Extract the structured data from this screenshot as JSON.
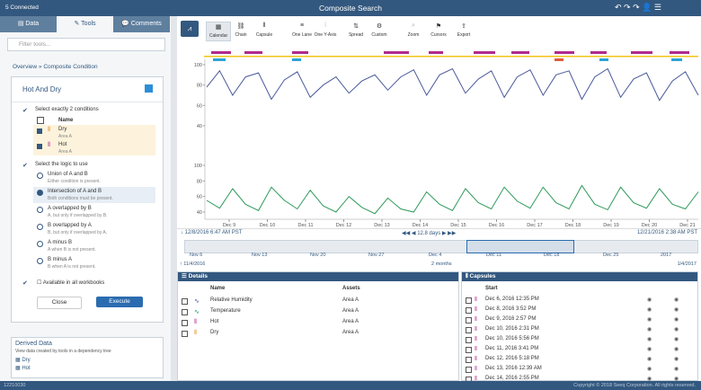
{
  "topbar": {
    "connection": "5 Connected",
    "title": "Composite Search"
  },
  "sidebar": {
    "tabs": [
      "Data",
      "Tools",
      "Comments"
    ],
    "filter_placeholder": "Filter tools...",
    "breadcrumb": [
      "Overview",
      "Composite Condition"
    ],
    "tool_title": "Hot And Dry",
    "step1": "Select exactly 2 conditions",
    "column": "Name",
    "conditions": [
      {
        "name": "Dry",
        "asset": "Area A"
      },
      {
        "name": "Hot",
        "asset": "Area A"
      }
    ],
    "step2": "Select the logic to use",
    "logic": [
      {
        "label": "Union of A and B",
        "desc": "Either condition is present."
      },
      {
        "label": "Intersection of A and B",
        "desc": "Both conditions must be present."
      },
      {
        "label": "A overlapped by B",
        "desc": "A, but only if overlapped by B."
      },
      {
        "label": "B overlapped by A",
        "desc": "B, but only if overlapped by A."
      },
      {
        "label": "A minus B",
        "desc": "A when B is not present."
      },
      {
        "label": "B minus A",
        "desc": "B when A is not present."
      }
    ],
    "available": "Available in all workbooks",
    "close": "Close",
    "execute": "Execute",
    "derived_title": "Derived Data",
    "derived_desc": "View data created by tools in a dependency tree",
    "derived_items": [
      "Dry",
      "Hot"
    ]
  },
  "toolbar": [
    "Calendar",
    "Chain",
    "Capsule",
    "One Lane",
    "One Y-Axis",
    "Spread",
    "Custom",
    "Zoom",
    "Cursors",
    "Export"
  ],
  "trend": {
    "y1ticks": [
      100,
      80,
      60,
      40
    ],
    "y2ticks": [
      100,
      80,
      60,
      40
    ],
    "xlabels": [
      "Dec 9",
      "Dec 10",
      "Dec 11",
      "Dec 12",
      "Dec 13",
      "Dec 14",
      "Dec 15",
      "Dec 16",
      "Dec 17",
      "Dec 18",
      "Dec 19",
      "Dec 20",
      "Dec 21"
    ],
    "series": [
      {
        "name": "Relative Humidity",
        "color": "#4a5a9a",
        "values": [
          78,
          94,
          70,
          88,
          92,
          66,
          85,
          93,
          68,
          80,
          88,
          72,
          84,
          90,
          75,
          88,
          95,
          70,
          90,
          96,
          72,
          86,
          94,
          68,
          88,
          95,
          70,
          90,
          94,
          66,
          88,
          96,
          68,
          86,
          92,
          65,
          84,
          93,
          70
        ]
      },
      {
        "name": "Temperature",
        "color": "#2e9a5a",
        "values": [
          55,
          45,
          70,
          50,
          42,
          72,
          55,
          44,
          68,
          48,
          40,
          60,
          46,
          38,
          58,
          44,
          40,
          66,
          50,
          42,
          70,
          52,
          44,
          72,
          54,
          45,
          72,
          52,
          44,
          74,
          50,
          43,
          72,
          52,
          45,
          70,
          50,
          44,
          66
        ]
      }
    ]
  },
  "timebar": {
    "start": "12/8/2016 6:47 AM PST",
    "duration": "12.8 days",
    "end": "12/21/2016 2:38 AM PST"
  },
  "navigator": {
    "labels": [
      "Nov 6",
      "Nov 13",
      "Nov 20",
      "Nov 27",
      "Dec 4",
      "Dec 11",
      "Dec 18",
      "Dec 25",
      "2017"
    ],
    "start": "11/4/2016",
    "duration": "2 months",
    "end": "1/4/2017"
  },
  "details": {
    "title": "Details",
    "columns": [
      "Name",
      "Assets"
    ],
    "rows": [
      [
        "Relative Humidity",
        "Area A"
      ],
      [
        "Temperature",
        "Area A"
      ],
      [
        "Hot",
        "Area A"
      ],
      [
        "Dry",
        "Area A"
      ]
    ]
  },
  "capsules": {
    "title": "Capsules",
    "column": "Start",
    "rows": [
      "Dec 6, 2016 12:35 PM",
      "Dec 8, 2016 3:52 PM",
      "Dec 9, 2016 2:57 PM",
      "Dec 10, 2016 2:31 PM",
      "Dec 10, 2016 5:56 PM",
      "Dec 11, 2016 3:41 PM",
      "Dec 12, 2016 5:18 PM",
      "Dec 13, 2016 12:39 AM",
      "Dec 14, 2016 2:55 PM"
    ]
  },
  "footer": {
    "version": "12210030",
    "copyright": "Copyright © 2018 Seeq Corporation. All rights reserved."
  }
}
